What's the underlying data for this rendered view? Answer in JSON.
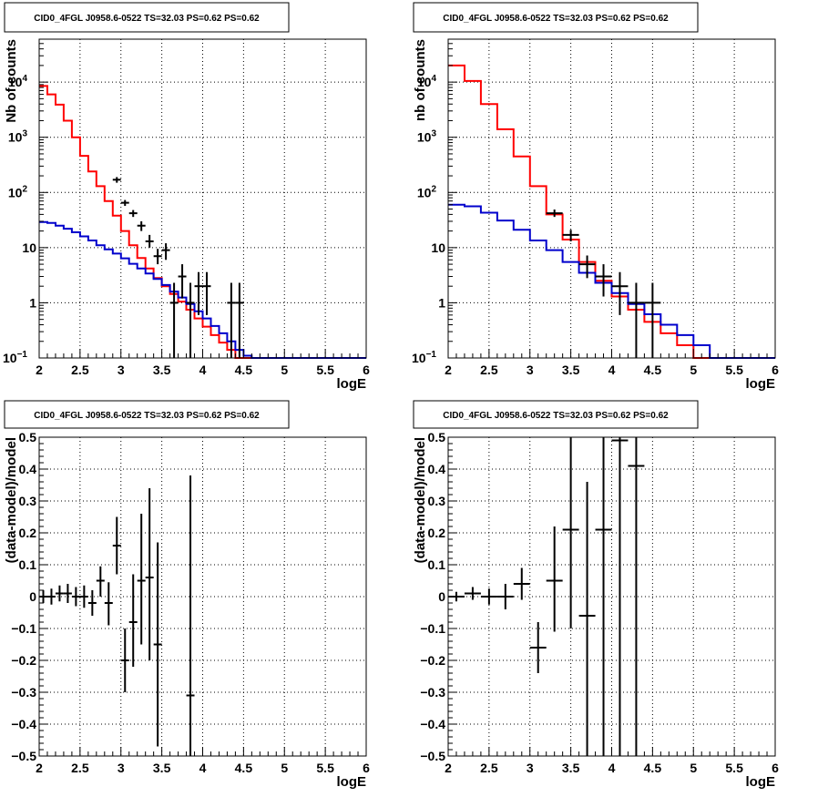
{
  "chart_data": [
    {
      "type": "line",
      "title": "CID0_4FGL J0958.6-0522 TS=32.03 PS=0.62 PS=0.62",
      "xlabel": "logE",
      "ylabel": "Nb of counts",
      "xlim": [
        2,
        6
      ],
      "ylim": [
        0.1,
        60000
      ],
      "yscale": "log",
      "grid": true,
      "xticks": [
        "2",
        "2.5",
        "3",
        "3.5",
        "4",
        "4.5",
        "5",
        "5.5",
        "6"
      ],
      "yticks": [
        {
          "v": 0.1,
          "main": "10",
          "sup": "−1"
        },
        {
          "v": 1,
          "main": "1",
          "sup": ""
        },
        {
          "v": 10,
          "main": "10",
          "sup": ""
        },
        {
          "v": 100,
          "main": "10",
          "sup": "2"
        },
        {
          "v": 1000,
          "main": "10",
          "sup": "3"
        },
        {
          "v": 10000,
          "main": "10",
          "sup": "4"
        }
      ],
      "series": [
        {
          "color": "#ff0000",
          "kind": "step",
          "edges": [
            2.0,
            2.1,
            2.2,
            2.3,
            2.4,
            2.5,
            2.6,
            2.7,
            2.8,
            2.9,
            3.0,
            3.1,
            3.2,
            3.3,
            3.4,
            3.5,
            3.6,
            3.7,
            3.8,
            3.9,
            4.0,
            4.1,
            4.2,
            4.3,
            4.4,
            4.5,
            4.6,
            4.7,
            4.8,
            4.9,
            5.0,
            5.1,
            5.2,
            5.3,
            5.4,
            5.5,
            5.6,
            5.7,
            5.8,
            5.9,
            6.0
          ],
          "values": [
            8500,
            6000,
            3900,
            2000,
            1000,
            460,
            240,
            130,
            70,
            38,
            20,
            11,
            6.5,
            4.2,
            2.8,
            2.0,
            1.45,
            1.05,
            0.75,
            0.52,
            0.37,
            0.26,
            0.19,
            0.14,
            0.1,
            0.1,
            0.1,
            0.1,
            0.1,
            0.1,
            0.1,
            0.1,
            0.1,
            0.1,
            0.1,
            0.1,
            0.1,
            0.1,
            0.1,
            0.1
          ]
        },
        {
          "color": "#0000cc",
          "kind": "step",
          "edges": [
            2.0,
            2.1,
            2.2,
            2.3,
            2.4,
            2.5,
            2.6,
            2.7,
            2.8,
            2.9,
            3.0,
            3.1,
            3.2,
            3.3,
            3.4,
            3.5,
            3.6,
            3.7,
            3.8,
            3.9,
            4.0,
            4.1,
            4.2,
            4.3,
            4.4,
            4.5,
            4.6,
            4.7,
            4.8,
            4.9,
            5.0,
            5.1,
            5.2,
            5.3,
            5.4,
            5.5,
            5.6,
            5.7,
            5.8,
            5.9,
            6.0
          ],
          "values": [
            29,
            28,
            25,
            22,
            19,
            16,
            13.5,
            11,
            9.3,
            7.8,
            6.4,
            5.1,
            4.2,
            3.4,
            2.7,
            2.1,
            1.6,
            1.25,
            0.95,
            0.7,
            0.52,
            0.38,
            0.28,
            0.2,
            0.14,
            0.11,
            0.1,
            0.1,
            0.1,
            0.1,
            0.1,
            0.1,
            0.1,
            0.1,
            0.1,
            0.1,
            0.1,
            0.1,
            0.1,
            0.1
          ]
        },
        {
          "color": "#000000",
          "kind": "points",
          "xerr": 0.05,
          "points": [
            {
              "x": 2.95,
              "y": 170,
              "lo": 150,
              "hi": 190
            },
            {
              "x": 3.05,
              "y": 65,
              "lo": 57,
              "hi": 73
            },
            {
              "x": 3.15,
              "y": 42,
              "lo": 36,
              "hi": 48
            },
            {
              "x": 3.25,
              "y": 25,
              "lo": 20,
              "hi": 30
            },
            {
              "x": 3.35,
              "y": 13,
              "lo": 10,
              "hi": 17
            },
            {
              "x": 3.45,
              "y": 7,
              "lo": 5,
              "hi": 9.5
            },
            {
              "x": 3.55,
              "y": 9,
              "lo": 6,
              "hi": 12
            },
            {
              "x": 3.65,
              "y": 1,
              "lo": 0.1,
              "hi": 2.3
            },
            {
              "x": 3.75,
              "y": 3,
              "lo": 1.2,
              "hi": 5
            },
            {
              "x": 3.85,
              "y": 1,
              "lo": 0.1,
              "hi": 2.3
            },
            {
              "x": 3.95,
              "y": 2,
              "lo": 0.6,
              "hi": 3.6
            },
            {
              "x": 4.05,
              "y": 2,
              "lo": 0.6,
              "hi": 3.6
            },
            {
              "x": 4.35,
              "y": 1,
              "lo": 0.1,
              "hi": 2.3
            },
            {
              "x": 4.45,
              "y": 1,
              "lo": 0.1,
              "hi": 2.3
            }
          ]
        }
      ]
    },
    {
      "type": "line",
      "title": "CID0_4FGL J0958.6-0522 TS=32.03 PS=0.62 PS=0.62",
      "xlabel": "logE",
      "ylabel": "nb of counts",
      "xlim": [
        2,
        6
      ],
      "ylim": [
        0.1,
        60000
      ],
      "yscale": "log",
      "grid": true,
      "xticks": [
        "2",
        "2.5",
        "3",
        "3.5",
        "4",
        "4.5",
        "5",
        "5.5",
        "6"
      ],
      "yticks": [
        {
          "v": 0.1,
          "main": "10",
          "sup": "−1"
        },
        {
          "v": 1,
          "main": "1",
          "sup": ""
        },
        {
          "v": 10,
          "main": "10",
          "sup": ""
        },
        {
          "v": 100,
          "main": "10",
          "sup": "2"
        },
        {
          "v": 1000,
          "main": "10",
          "sup": "3"
        },
        {
          "v": 10000,
          "main": "10",
          "sup": "4"
        }
      ],
      "series": [
        {
          "color": "#ff0000",
          "kind": "step",
          "edges": [
            2.0,
            2.2,
            2.4,
            2.6,
            2.8,
            3.0,
            3.2,
            3.4,
            3.6,
            3.8,
            4.0,
            4.2,
            4.4,
            4.6,
            4.8,
            5.0,
            5.2,
            5.4,
            5.6,
            5.8,
            6.0
          ],
          "values": [
            20000,
            10500,
            4000,
            1400,
            450,
            130,
            40,
            14,
            5.5,
            2.5,
            1.3,
            0.75,
            0.45,
            0.28,
            0.17,
            0.1,
            0.1,
            0.1,
            0.1,
            0.1
          ]
        },
        {
          "color": "#0000cc",
          "kind": "step",
          "edges": [
            2.0,
            2.2,
            2.4,
            2.6,
            2.8,
            3.0,
            3.2,
            3.4,
            3.6,
            3.8,
            4.0,
            4.2,
            4.4,
            4.6,
            4.8,
            5.0,
            5.2,
            5.4,
            5.6,
            5.8,
            6.0
          ],
          "values": [
            60,
            56,
            43,
            31,
            21,
            13.5,
            9,
            5.5,
            3.5,
            2.3,
            1.5,
            0.95,
            0.62,
            0.4,
            0.26,
            0.17,
            0.1,
            0.1,
            0.1,
            0.1
          ]
        },
        {
          "color": "#000000",
          "kind": "points",
          "xerr": 0.1,
          "points": [
            {
              "x": 3.3,
              "y": 42,
              "lo": 36,
              "hi": 49
            },
            {
              "x": 3.5,
              "y": 17,
              "lo": 13,
              "hi": 21
            },
            {
              "x": 3.7,
              "y": 5,
              "lo": 2.8,
              "hi": 7.2
            },
            {
              "x": 3.9,
              "y": 3,
              "lo": 1.3,
              "hi": 5
            },
            {
              "x": 4.1,
              "y": 2,
              "lo": 0.6,
              "hi": 3.6
            },
            {
              "x": 4.3,
              "y": 1,
              "lo": 0.1,
              "hi": 2.3
            },
            {
              "x": 4.5,
              "y": 1,
              "lo": 0.1,
              "hi": 2.3
            }
          ]
        }
      ]
    },
    {
      "type": "scatter",
      "title": "CID0_4FGL J0958.6-0522 TS=32.03 PS=0.62 PS=0.62",
      "xlabel": "logE",
      "ylabel": "(data-model)/model",
      "xlim": [
        2,
        6
      ],
      "ylim": [
        -0.5,
        0.5
      ],
      "yscale": "linear",
      "grid": true,
      "xticks": [
        "2",
        "2.5",
        "3",
        "3.5",
        "4",
        "4.5",
        "5",
        "5.5",
        "6"
      ],
      "yticks": [
        {
          "v": -0.5,
          "main": "−0.5",
          "sup": ""
        },
        {
          "v": -0.4,
          "main": "−0.4",
          "sup": ""
        },
        {
          "v": -0.3,
          "main": "−0.3",
          "sup": ""
        },
        {
          "v": -0.2,
          "main": "−0.2",
          "sup": ""
        },
        {
          "v": -0.1,
          "main": "−0.1",
          "sup": ""
        },
        {
          "v": 0,
          "main": "0",
          "sup": ""
        },
        {
          "v": 0.1,
          "main": "0.1",
          "sup": ""
        },
        {
          "v": 0.2,
          "main": "0.2",
          "sup": ""
        },
        {
          "v": 0.3,
          "main": "0.3",
          "sup": ""
        },
        {
          "v": 0.4,
          "main": "0.4",
          "sup": ""
        },
        {
          "v": 0.5,
          "main": "0.5",
          "sup": ""
        }
      ],
      "series": [
        {
          "color": "#000000",
          "kind": "points",
          "xerr": 0.05,
          "points": [
            {
              "x": 2.05,
              "y": 0.0,
              "lo": -0.02,
              "hi": 0.02
            },
            {
              "x": 2.15,
              "y": 0.0,
              "lo": -0.025,
              "hi": 0.025
            },
            {
              "x": 2.25,
              "y": 0.01,
              "lo": -0.015,
              "hi": 0.035
            },
            {
              "x": 2.35,
              "y": 0.01,
              "lo": -0.02,
              "hi": 0.04
            },
            {
              "x": 2.45,
              "y": 0.0,
              "lo": -0.03,
              "hi": 0.03
            },
            {
              "x": 2.55,
              "y": 0.0,
              "lo": -0.035,
              "hi": 0.035
            },
            {
              "x": 2.65,
              "y": -0.02,
              "lo": -0.06,
              "hi": 0.02
            },
            {
              "x": 2.75,
              "y": 0.05,
              "lo": 0.0,
              "hi": 0.095
            },
            {
              "x": 2.85,
              "y": -0.02,
              "lo": -0.09,
              "hi": 0.045
            },
            {
              "x": 2.95,
              "y": 0.16,
              "lo": 0.07,
              "hi": 0.25
            },
            {
              "x": 3.05,
              "y": -0.2,
              "lo": -0.3,
              "hi": -0.1
            },
            {
              "x": 3.15,
              "y": -0.08,
              "lo": -0.22,
              "hi": 0.07
            },
            {
              "x": 3.25,
              "y": 0.05,
              "lo": -0.15,
              "hi": 0.26
            },
            {
              "x": 3.35,
              "y": 0.06,
              "lo": -0.2,
              "hi": 0.34
            },
            {
              "x": 3.45,
              "y": -0.15,
              "lo": -0.47,
              "hi": 0.17
            },
            {
              "x": 3.85,
              "y": -0.31,
              "lo": -0.5,
              "hi": 0.38
            }
          ]
        }
      ]
    },
    {
      "type": "scatter",
      "title": "CID0_4FGL J0958.6-0522 TS=32.03 PS=0.62 PS=0.62",
      "xlabel": "logE",
      "ylabel": "(data-model)/model",
      "xlim": [
        2,
        6
      ],
      "ylim": [
        -0.5,
        0.5
      ],
      "yscale": "linear",
      "grid": true,
      "xticks": [
        "2",
        "2.5",
        "3",
        "3.5",
        "4",
        "4.5",
        "5",
        "5.5",
        "6"
      ],
      "yticks": [
        {
          "v": -0.5,
          "main": "−0.5",
          "sup": ""
        },
        {
          "v": -0.4,
          "main": "−0.4",
          "sup": ""
        },
        {
          "v": -0.3,
          "main": "−0.3",
          "sup": ""
        },
        {
          "v": -0.2,
          "main": "−0.2",
          "sup": ""
        },
        {
          "v": -0.1,
          "main": "−0.1",
          "sup": ""
        },
        {
          "v": 0,
          "main": "0",
          "sup": ""
        },
        {
          "v": 0.1,
          "main": "0.1",
          "sup": ""
        },
        {
          "v": 0.2,
          "main": "0.2",
          "sup": ""
        },
        {
          "v": 0.3,
          "main": "0.3",
          "sup": ""
        },
        {
          "v": 0.4,
          "main": "0.4",
          "sup": ""
        },
        {
          "v": 0.5,
          "main": "0.5",
          "sup": ""
        }
      ],
      "series": [
        {
          "color": "#000000",
          "kind": "points",
          "xerr": 0.1,
          "points": [
            {
              "x": 2.1,
              "y": 0.0,
              "lo": -0.015,
              "hi": 0.015
            },
            {
              "x": 2.3,
              "y": 0.01,
              "lo": -0.01,
              "hi": 0.03
            },
            {
              "x": 2.5,
              "y": 0.0,
              "lo": -0.025,
              "hi": 0.025
            },
            {
              "x": 2.7,
              "y": 0.0,
              "lo": -0.04,
              "hi": 0.04
            },
            {
              "x": 2.9,
              "y": 0.04,
              "lo": -0.01,
              "hi": 0.09
            },
            {
              "x": 3.1,
              "y": -0.16,
              "lo": -0.24,
              "hi": -0.08
            },
            {
              "x": 3.3,
              "y": 0.05,
              "lo": -0.11,
              "hi": 0.22
            },
            {
              "x": 3.5,
              "y": 0.21,
              "lo": -0.1,
              "hi": 0.5
            },
            {
              "x": 3.7,
              "y": -0.06,
              "lo": -0.5,
              "hi": 0.36
            },
            {
              "x": 3.9,
              "y": 0.21,
              "lo": -0.5,
              "hi": 0.5
            },
            {
              "x": 4.1,
              "y": 0.49,
              "lo": -0.5,
              "hi": 0.5
            },
            {
              "x": 4.3,
              "y": 0.41,
              "lo": -0.5,
              "hi": 0.5
            }
          ]
        }
      ]
    }
  ]
}
